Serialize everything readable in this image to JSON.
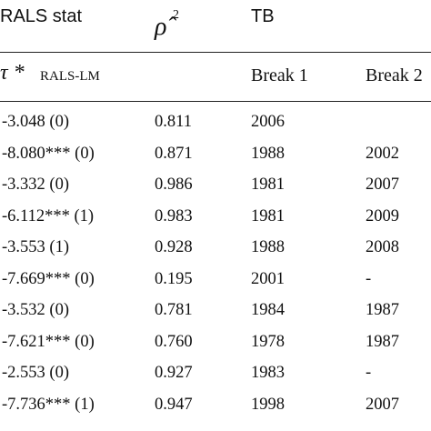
{
  "header": {
    "rals_stat": "RALS  stat",
    "rho_symbol": "ρ̂",
    "rho_superscript": "2",
    "tb": "TB",
    "tau_symbol": "τ *",
    "tau_subscript": "RALS-LM",
    "break1": "Break 1",
    "break2": "Break 2"
  },
  "rows": [
    {
      "stat": "-3.048 (0)",
      "rho": "0.811",
      "b1": "2006",
      "b2": ""
    },
    {
      "stat": "-8.080*** (0)",
      "rho": "0.871",
      "b1": "1988",
      "b2": "2002"
    },
    {
      "stat": "-3.332 (0)",
      "rho": "0.986",
      "b1": "1981",
      "b2": "2007"
    },
    {
      "stat": "-6.112*** (1)",
      "rho": "0.983",
      "b1": "1981",
      "b2": "2009"
    },
    {
      "stat": "-3.553 (1)",
      "rho": "0.928",
      "b1": "1988",
      "b2": "2008"
    },
    {
      "stat": "-7.669*** (0)",
      "rho": "0.195",
      "b1": "2001",
      "b2": "-"
    },
    {
      "stat": "-3.532 (0)",
      "rho": "0.781",
      "b1": "1984",
      "b2": "1987"
    },
    {
      "stat": "-7.621*** (0)",
      "rho": "0.760",
      "b1": "1978",
      "b2": "1987"
    },
    {
      "stat": "-2.553 (0)",
      "rho": "0.927",
      "b1": "1983",
      "b2": "-"
    },
    {
      "stat": "-7.736*** (1)",
      "rho": "0.947",
      "b1": "1998",
      "b2": "2007"
    }
  ]
}
